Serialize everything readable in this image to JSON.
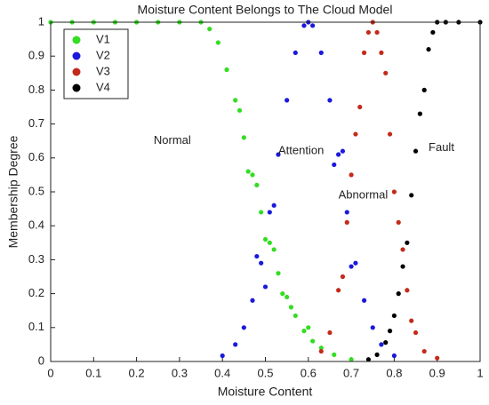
{
  "chart_data": {
    "type": "scatter",
    "title": "Moisture Content Belongs to The Cloud Model",
    "x_label": "Moisture Content",
    "y_label": "Membership Degree",
    "xlim": [
      0,
      1
    ],
    "ylim": [
      0,
      1
    ],
    "xticks": [
      0,
      0.1,
      0.2,
      0.3,
      0.4,
      0.5,
      0.6,
      0.7,
      0.8,
      0.9,
      1
    ],
    "yticks": [
      0,
      0.1,
      0.2,
      0.3,
      0.4,
      0.5,
      0.6,
      0.7,
      0.8,
      0.9,
      1
    ],
    "grid": false,
    "legend": "upper-left",
    "series": [
      {
        "name": "V1",
        "color": "#33dd22",
        "x": [
          0,
          0.05,
          0.1,
          0.15,
          0.2,
          0.25,
          0.3,
          0.35,
          0.37,
          0.39,
          0.41,
          0.43,
          0.45,
          0.47,
          0.49,
          0.51,
          0.53,
          0.55,
          0.57,
          0.59,
          0.61,
          0.63,
          0.66,
          0.7,
          0.44,
          0.46,
          0.48,
          0.5,
          0.52,
          0.54,
          0.56,
          0.6
        ],
        "values": [
          1,
          1,
          1,
          1,
          1,
          1,
          1,
          1,
          0.98,
          0.94,
          0.86,
          0.77,
          0.66,
          0.55,
          0.44,
          0.35,
          0.26,
          0.19,
          0.135,
          0.09,
          0.06,
          0.04,
          0.02,
          0.006,
          0.74,
          0.56,
          0.52,
          0.36,
          0.33,
          0.2,
          0.16,
          0.1
        ]
      },
      {
        "name": "V2",
        "color": "#1a1adb",
        "x": [
          0.4,
          0.43,
          0.45,
          0.47,
          0.49,
          0.51,
          0.53,
          0.55,
          0.57,
          0.59,
          0.6,
          0.61,
          0.63,
          0.65,
          0.67,
          0.69,
          0.71,
          0.73,
          0.75,
          0.77,
          0.8,
          0.48,
          0.52,
          0.66,
          0.7,
          0.5,
          0.68
        ],
        "values": [
          0.017,
          0.05,
          0.1,
          0.18,
          0.29,
          0.44,
          0.61,
          0.77,
          0.91,
          0.99,
          1,
          0.99,
          0.91,
          0.77,
          0.61,
          0.44,
          0.29,
          0.18,
          0.1,
          0.05,
          0.017,
          0.31,
          0.46,
          0.58,
          0.28,
          0.22,
          0.62
        ]
      },
      {
        "name": "V3",
        "color": "#c42a1a",
        "x": [
          0.63,
          0.65,
          0.67,
          0.69,
          0.71,
          0.73,
          0.75,
          0.77,
          0.79,
          0.81,
          0.83,
          0.85,
          0.87,
          0.68,
          0.7,
          0.72,
          0.74,
          0.76,
          0.78,
          0.8,
          0.82,
          0.84,
          0.9
        ],
        "values": [
          0.03,
          0.085,
          0.21,
          0.41,
          0.67,
          0.91,
          1,
          0.91,
          0.67,
          0.41,
          0.21,
          0.085,
          0.03,
          0.25,
          0.55,
          0.75,
          0.97,
          0.97,
          0.85,
          0.5,
          0.33,
          0.12,
          0.01
        ]
      },
      {
        "name": "V4",
        "color": "#000000",
        "x": [
          0.74,
          0.76,
          0.78,
          0.8,
          0.82,
          0.84,
          0.86,
          0.88,
          0.9,
          0.92,
          0.95,
          1,
          0.81,
          0.83,
          0.85,
          0.87,
          0.89,
          0.79
        ],
        "values": [
          0.006,
          0.02,
          0.056,
          0.135,
          0.28,
          0.49,
          0.73,
          0.92,
          1,
          1,
          1,
          1,
          0.2,
          0.35,
          0.62,
          0.8,
          0.97,
          0.09
        ]
      }
    ],
    "annotations": [
      {
        "text": "Normal",
        "x": 0.24,
        "y": 0.65
      },
      {
        "text": "Attention",
        "x": 0.53,
        "y": 0.62
      },
      {
        "text": "Abnormal",
        "x": 0.67,
        "y": 0.49
      },
      {
        "text": "Fault",
        "x": 0.88,
        "y": 0.63
      }
    ]
  }
}
